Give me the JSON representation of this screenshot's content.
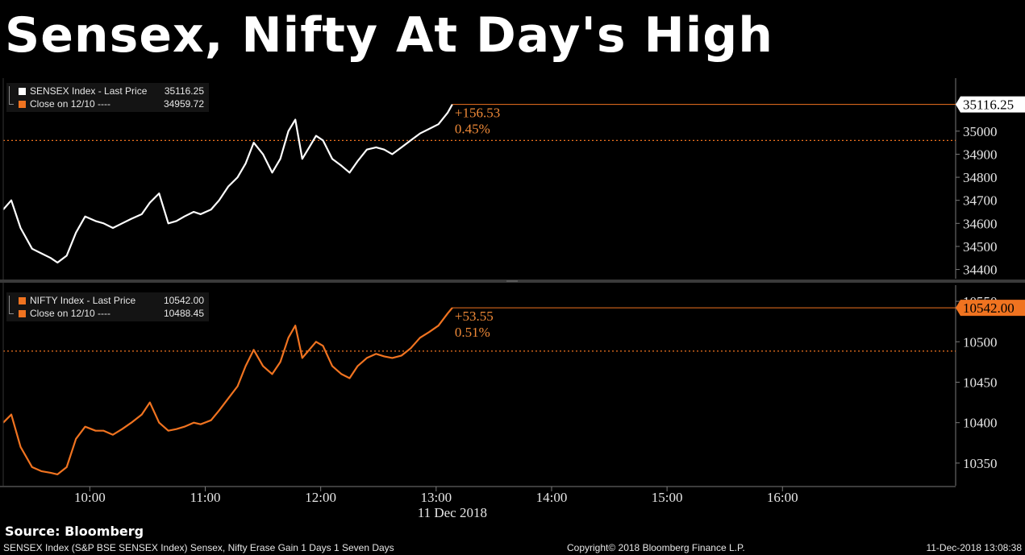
{
  "title": "Sensex, Nifty At Day's High",
  "colors": {
    "background": "#000000",
    "sensex_line": "#ffffff",
    "nifty_line": "#f07320",
    "close_line": "#f07320",
    "change_text": "#f08a38",
    "axis": "#7a7a7a"
  },
  "chart_data": [
    {
      "type": "line",
      "legend": {
        "last_label": "SENSEX Index - Last Price",
        "last_value": "35116.25",
        "close_label": "Close on 12/10 ----",
        "close_value": "34959.72"
      },
      "change": "+156.53",
      "change_pct": "0.45%",
      "last_tag": "35116.25",
      "close": 34959.72,
      "ylim": [
        34360,
        35230
      ],
      "yticks": [
        34400,
        34500,
        34600,
        34700,
        34800,
        34900,
        35000
      ],
      "series": [
        {
          "x": [
            9.25,
            9.32,
            9.4,
            9.5,
            9.58,
            9.66,
            9.72,
            9.8,
            9.88,
            9.96,
            10.05,
            10.12,
            10.2,
            10.28,
            10.36,
            10.45,
            10.52,
            10.6,
            10.68,
            10.75,
            10.82,
            10.9,
            10.96,
            11.05,
            11.12,
            11.2,
            11.28,
            11.35,
            11.42,
            11.5,
            11.58,
            11.65,
            11.72,
            11.78,
            11.84,
            11.9,
            11.96,
            12.02,
            12.1,
            12.18,
            12.25,
            12.32,
            12.4,
            12.48,
            12.55,
            12.62,
            12.7,
            12.78,
            12.86,
            12.94,
            13.02,
            13.1,
            13.14
          ],
          "values": [
            34660,
            34700,
            34580,
            34490,
            34470,
            34450,
            34430,
            34460,
            34560,
            34630,
            34610,
            34600,
            34580,
            34600,
            34620,
            34640,
            34690,
            34730,
            34600,
            34610,
            34630,
            34650,
            34640,
            34660,
            34700,
            34760,
            34800,
            34860,
            34950,
            34900,
            34820,
            34880,
            35000,
            35050,
            34880,
            34930,
            34980,
            34960,
            34880,
            34850,
            34820,
            34870,
            34920,
            34930,
            34920,
            34900,
            34930,
            34960,
            34990,
            35010,
            35030,
            35080,
            35116
          ]
        }
      ]
    },
    {
      "type": "line",
      "legend": {
        "last_label": "NIFTY Index - Last Price",
        "last_value": "10542.00",
        "close_label": "Close on 12/10 ----",
        "close_value": "10488.45"
      },
      "change": "+53.55",
      "change_pct": "0.51%",
      "last_tag": "10542.00",
      "close": 10488.45,
      "ylim": [
        10322,
        10570
      ],
      "yticks": [
        10350,
        10400,
        10450,
        10500,
        10550
      ],
      "series": [
        {
          "x": [
            9.25,
            9.32,
            9.4,
            9.5,
            9.58,
            9.66,
            9.72,
            9.8,
            9.88,
            9.96,
            10.05,
            10.12,
            10.2,
            10.28,
            10.36,
            10.45,
            10.52,
            10.6,
            10.68,
            10.75,
            10.82,
            10.9,
            10.96,
            11.05,
            11.12,
            11.2,
            11.28,
            11.35,
            11.42,
            11.5,
            11.58,
            11.65,
            11.72,
            11.78,
            11.84,
            11.9,
            11.96,
            12.02,
            12.1,
            12.18,
            12.25,
            12.32,
            12.4,
            12.48,
            12.55,
            12.62,
            12.7,
            12.78,
            12.86,
            12.94,
            13.02,
            13.1,
            13.14
          ],
          "values": [
            10400,
            10410,
            10370,
            10345,
            10340,
            10338,
            10336,
            10345,
            10380,
            10395,
            10390,
            10390,
            10385,
            10392,
            10400,
            10410,
            10425,
            10400,
            10390,
            10392,
            10395,
            10400,
            10398,
            10403,
            10415,
            10430,
            10445,
            10470,
            10490,
            10470,
            10460,
            10475,
            10505,
            10520,
            10480,
            10490,
            10500,
            10495,
            10470,
            10460,
            10455,
            10470,
            10480,
            10485,
            10482,
            10480,
            10483,
            10492,
            10505,
            10512,
            10520,
            10535,
            10542
          ]
        }
      ]
    }
  ],
  "x_axis": {
    "ticks": [
      {
        "value": 10,
        "label": "10:00"
      },
      {
        "value": 11,
        "label": "11:00"
      },
      {
        "value": 12,
        "label": "12:00"
      },
      {
        "value": 13,
        "label": "13:00"
      },
      {
        "value": 14,
        "label": "14:00"
      },
      {
        "value": 15,
        "label": "15:00"
      },
      {
        "value": 16,
        "label": "16:00"
      }
    ],
    "date_label": "11 Dec 2018",
    "xlim": [
      9.25,
      17.5
    ]
  },
  "footer": {
    "source": "Source: Bloomberg",
    "caption": "SENSEX Index (S&P BSE SENSEX Index) Sensex, Nifty Erase Gain 1 Days 1 Seven Days",
    "copyright": "Copyright© 2018 Bloomberg Finance L.P.",
    "timestamp": "11-Dec-2018 13:08:38"
  }
}
